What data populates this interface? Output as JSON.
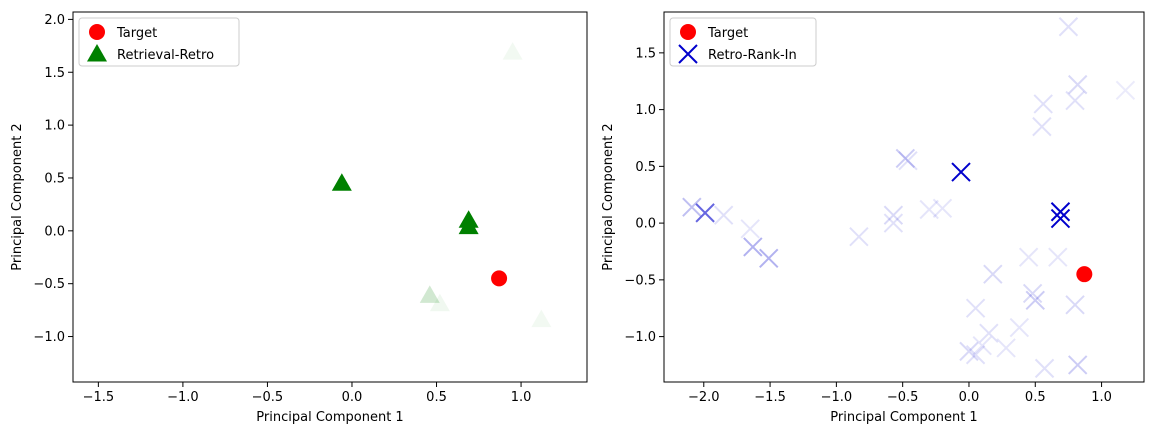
{
  "chart_data": [
    {
      "type": "scatter",
      "xlabel": "Principal Component 1",
      "ylabel": "Principal Component 2",
      "xlim": [
        -1.65,
        1.39
      ],
      "ylim": [
        -1.43,
        2.07
      ],
      "xticks": [
        -1.5,
        -1.0,
        -0.5,
        0.0,
        0.5,
        1.0
      ],
      "xtick_labels": [
        "−1.5",
        "−1.0",
        "−0.5",
        "0.0",
        "0.5",
        "1.0"
      ],
      "yticks": [
        -1.0,
        -0.5,
        0.0,
        0.5,
        1.0,
        1.5,
        2.0
      ],
      "ytick_labels": [
        "−1.0",
        "−0.5",
        "0.0",
        "0.5",
        "1.0",
        "1.5",
        "2.0"
      ],
      "legend_position": "top-left",
      "series": [
        {
          "name": "Target",
          "marker": "circle",
          "color": "#ff0000",
          "points": [
            {
              "x": 0.87,
              "y": -0.45,
              "alpha": 1.0
            }
          ]
        },
        {
          "name": "Retrieval-Retro",
          "marker": "triangle",
          "color": "#008000",
          "points": [
            {
              "x": -0.06,
              "y": 0.45,
              "alpha": 1.0
            },
            {
              "x": 0.69,
              "y": 0.1,
              "alpha": 1.0
            },
            {
              "x": 0.69,
              "y": 0.04,
              "alpha": 1.0
            },
            {
              "x": 0.46,
              "y": -0.61,
              "alpha": 0.18
            },
            {
              "x": 0.52,
              "y": -0.69,
              "alpha": 0.06
            },
            {
              "x": 0.95,
              "y": 1.69,
              "alpha": 0.05
            },
            {
              "x": 1.12,
              "y": -0.84,
              "alpha": 0.05
            }
          ]
        }
      ]
    },
    {
      "type": "scatter",
      "xlabel": "Principal Component 1",
      "ylabel": "Principal Component 2",
      "xlim": [
        -2.3,
        1.32
      ],
      "ylim": [
        -1.4,
        1.86
      ],
      "xticks": [
        -2.0,
        -1.5,
        -1.0,
        -0.5,
        0.0,
        0.5,
        1.0
      ],
      "xtick_labels": [
        "−2.0",
        "−1.5",
        "−1.0",
        "−0.5",
        "0.0",
        "0.5",
        "1.0"
      ],
      "yticks": [
        -1.0,
        -0.5,
        0.0,
        0.5,
        1.0,
        1.5
      ],
      "ytick_labels": [
        "−1.0",
        "−0.5",
        "0.0",
        "0.5",
        "1.0",
        "1.5"
      ],
      "legend_position": "top-left",
      "series": [
        {
          "name": "Target",
          "marker": "circle",
          "color": "#ff0000",
          "points": [
            {
              "x": 0.87,
              "y": -0.45,
              "alpha": 1.0
            }
          ]
        },
        {
          "name": "Retro-Rank-In",
          "marker": "x",
          "color": "#0000cc",
          "points": [
            {
              "x": -0.06,
              "y": 0.45,
              "alpha": 1.0
            },
            {
              "x": 0.69,
              "y": 0.1,
              "alpha": 1.0
            },
            {
              "x": 0.69,
              "y": 0.04,
              "alpha": 1.0
            },
            {
              "x": -1.99,
              "y": 0.09,
              "alpha": 0.6
            },
            {
              "x": -2.09,
              "y": 0.14,
              "alpha": 0.25
            },
            {
              "x": -1.85,
              "y": 0.07,
              "alpha": 0.12
            },
            {
              "x": -1.63,
              "y": -0.21,
              "alpha": 0.3
            },
            {
              "x": -1.51,
              "y": -0.31,
              "alpha": 0.3
            },
            {
              "x": -1.65,
              "y": -0.05,
              "alpha": 0.1
            },
            {
              "x": -0.83,
              "y": -0.12,
              "alpha": 0.12
            },
            {
              "x": -0.57,
              "y": 0.07,
              "alpha": 0.15
            },
            {
              "x": -0.57,
              "y": 0.0,
              "alpha": 0.12
            },
            {
              "x": -0.48,
              "y": 0.57,
              "alpha": 0.2
            },
            {
              "x": -0.46,
              "y": 0.55,
              "alpha": 0.12
            },
            {
              "x": -0.3,
              "y": 0.12,
              "alpha": 0.1
            },
            {
              "x": -0.2,
              "y": 0.13,
              "alpha": 0.1
            },
            {
              "x": 0.56,
              "y": 1.05,
              "alpha": 0.12
            },
            {
              "x": 0.55,
              "y": 0.85,
              "alpha": 0.12
            },
            {
              "x": 0.75,
              "y": 1.73,
              "alpha": 0.12
            },
            {
              "x": 0.82,
              "y": 1.22,
              "alpha": 0.15
            },
            {
              "x": 0.8,
              "y": 1.08,
              "alpha": 0.12
            },
            {
              "x": 1.18,
              "y": 1.17,
              "alpha": 0.08
            },
            {
              "x": 0.18,
              "y": -0.45,
              "alpha": 0.15
            },
            {
              "x": 0.45,
              "y": -0.3,
              "alpha": 0.1
            },
            {
              "x": 0.48,
              "y": -0.62,
              "alpha": 0.15
            },
            {
              "x": 0.5,
              "y": -0.68,
              "alpha": 0.2
            },
            {
              "x": 0.67,
              "y": -0.3,
              "alpha": 0.1
            },
            {
              "x": 0.8,
              "y": -0.72,
              "alpha": 0.15
            },
            {
              "x": 0.05,
              "y": -0.75,
              "alpha": 0.12
            },
            {
              "x": 0.15,
              "y": -0.97,
              "alpha": 0.12
            },
            {
              "x": 0.38,
              "y": -0.92,
              "alpha": 0.1
            },
            {
              "x": 0.0,
              "y": -1.13,
              "alpha": 0.15
            },
            {
              "x": 0.05,
              "y": -1.16,
              "alpha": 0.12
            },
            {
              "x": 0.1,
              "y": -1.08,
              "alpha": 0.1
            },
            {
              "x": 0.28,
              "y": -1.1,
              "alpha": 0.1
            },
            {
              "x": 0.57,
              "y": -1.28,
              "alpha": 0.12
            },
            {
              "x": 0.82,
              "y": -1.25,
              "alpha": 0.2
            }
          ]
        }
      ]
    }
  ]
}
